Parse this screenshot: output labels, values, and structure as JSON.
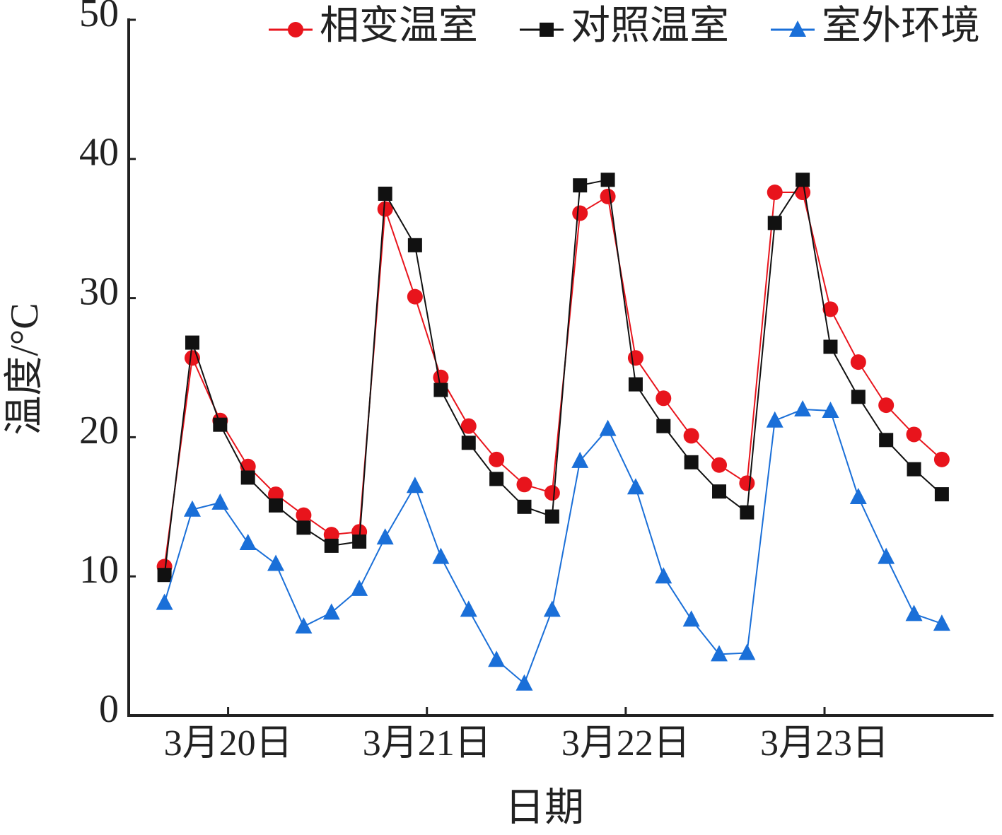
{
  "chart_data": {
    "type": "line",
    "xlabel": "日期",
    "ylabel": "温度/°C",
    "x": [
      19.68,
      19.82,
      19.96,
      20.1,
      20.24,
      20.38,
      20.52,
      20.66,
      20.79,
      20.94,
      21.07,
      21.21,
      21.35,
      21.49,
      21.63,
      21.77,
      21.91,
      22.05,
      22.19,
      22.33,
      22.47,
      22.61,
      22.75,
      22.89,
      23.03,
      23.17,
      23.31,
      23.45,
      23.59
    ],
    "series": [
      {
        "name": "相变温室",
        "color": "#e8141c",
        "marker": "circle",
        "values": [
          10.7,
          25.7,
          21.2,
          17.9,
          15.9,
          14.4,
          13.0,
          13.2,
          36.4,
          30.1,
          24.3,
          20.8,
          18.4,
          16.6,
          16.0,
          36.1,
          37.3,
          25.7,
          22.8,
          20.1,
          18.0,
          16.7,
          37.6,
          37.6,
          29.2,
          25.4,
          22.3,
          20.2,
          18.4
        ]
      },
      {
        "name": "对照温室",
        "color": "#111111",
        "marker": "square",
        "values": [
          10.1,
          26.8,
          20.9,
          17.1,
          15.1,
          13.5,
          12.2,
          12.5,
          37.5,
          33.8,
          23.4,
          19.6,
          17.0,
          15.0,
          14.3,
          38.1,
          38.5,
          23.8,
          20.8,
          18.2,
          16.1,
          14.6,
          35.4,
          38.5,
          26.5,
          22.9,
          19.8,
          17.7,
          15.9
        ]
      },
      {
        "name": "室外环境",
        "color": "#1a6fd8",
        "marker": "triangle",
        "values": [
          8.1,
          14.8,
          15.3,
          12.4,
          10.9,
          6.4,
          7.4,
          9.1,
          12.8,
          16.5,
          11.4,
          7.6,
          4.0,
          2.3,
          7.6,
          18.3,
          20.6,
          16.4,
          10.0,
          6.9,
          4.4,
          4.5,
          21.2,
          22.0,
          21.9,
          15.7,
          11.4,
          7.3,
          6.6
        ]
      }
    ],
    "xlim": [
      19.5,
      23.85
    ],
    "xticks": [
      {
        "value": 20,
        "label": "3月20日"
      },
      {
        "value": 21,
        "label": "3月21日"
      },
      {
        "value": 22,
        "label": "3月22日"
      },
      {
        "value": 23,
        "label": "3月23日"
      }
    ],
    "ylim": [
      0,
      50
    ],
    "yticks": [
      0,
      10,
      20,
      30,
      40,
      50
    ],
    "legend": "top-right",
    "grid": false
  }
}
